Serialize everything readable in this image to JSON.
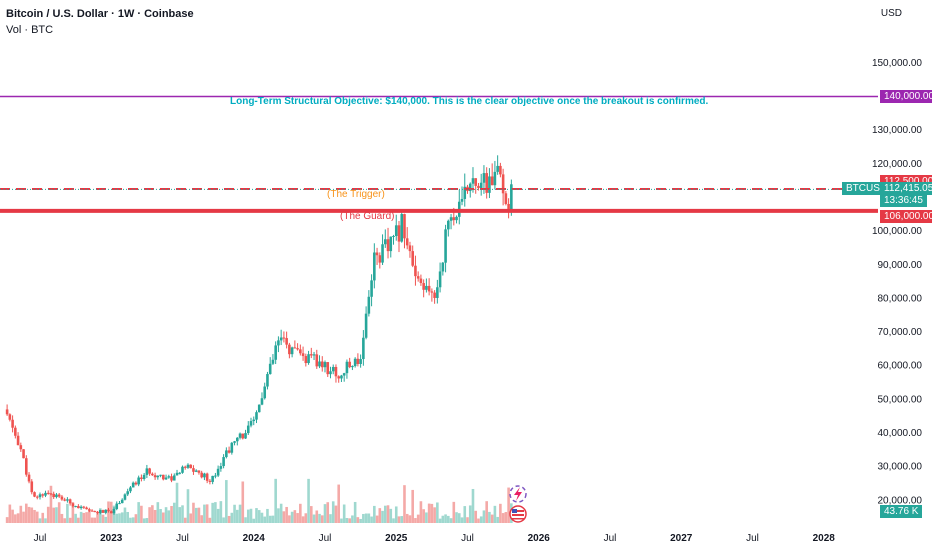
{
  "header": {
    "title": "Bitcoin / U.S. Dollar · 1W · Coinbase",
    "volume_label": "Vol · BTC",
    "currency": "USD"
  },
  "annotations": {
    "objective_text": "Long-Term Structural Objective: $140,000. This is the clear objective once the breakout is confirmed.",
    "trigger_text": "(The Trigger)",
    "guard_text": "(The Guard)"
  },
  "price_tags": {
    "objective": "140,000.00",
    "trigger": "112,500.00",
    "ticker": "BTCUSD",
    "last_price": "112,415.05",
    "countdown": "13:36:45",
    "guard": "106,000.00",
    "volume": "43.76 K"
  },
  "colors": {
    "up": "#26a69a",
    "down": "#ef5350",
    "objective_line": "#9c27b0",
    "level_line": "#e53945",
    "trigger_text": "#f7931a",
    "objective_text": "#00acc1"
  },
  "chart_data": {
    "type": "candlestick",
    "y_axis": {
      "min": 14000,
      "max": 160000,
      "ticks": [
        {
          "value": 150000,
          "label": "150,000.00"
        },
        {
          "value": 130000,
          "label": "130,000.00"
        },
        {
          "value": 120000,
          "label": "120,000.00"
        },
        {
          "value": 100000,
          "label": "100,000.00"
        },
        {
          "value": 90000,
          "label": "90,000.00"
        },
        {
          "value": 80000,
          "label": "80,000.00"
        },
        {
          "value": 70000,
          "label": "70,000.00"
        },
        {
          "value": 60000,
          "label": "60,000.00"
        },
        {
          "value": 50000,
          "label": "50,000.00"
        },
        {
          "value": 40000,
          "label": "40,000.00"
        },
        {
          "value": 30000,
          "label": "30,000.00"
        },
        {
          "value": 20000,
          "label": "20,000.00"
        }
      ]
    },
    "x_axis": {
      "ticks": [
        {
          "t": 2022.5,
          "label": "Jul",
          "bold": false
        },
        {
          "t": 2023.0,
          "label": "2023",
          "bold": true
        },
        {
          "t": 2023.5,
          "label": "Jul",
          "bold": false
        },
        {
          "t": 2024.0,
          "label": "2024",
          "bold": true
        },
        {
          "t": 2024.5,
          "label": "Jul",
          "bold": false
        },
        {
          "t": 2025.0,
          "label": "2025",
          "bold": true
        },
        {
          "t": 2025.5,
          "label": "Jul",
          "bold": false
        },
        {
          "t": 2026.0,
          "label": "2026",
          "bold": true
        },
        {
          "t": 2026.5,
          "label": "Jul",
          "bold": false
        },
        {
          "t": 2027.0,
          "label": "2027",
          "bold": true
        },
        {
          "t": 2027.5,
          "label": "Jul",
          "bold": false
        },
        {
          "t": 2028.0,
          "label": "2028",
          "bold": true
        }
      ]
    },
    "horizontal_levels": [
      {
        "name": "objective",
        "value": 140000
      },
      {
        "name": "trigger",
        "value": 112500
      },
      {
        "name": "guard",
        "value": 106000
      }
    ],
    "last_price": 112415.05,
    "anchors": [
      {
        "t": 2022.25,
        "p": 47000
      },
      {
        "t": 2022.36,
        "p": 36000
      },
      {
        "t": 2022.45,
        "p": 20500
      },
      {
        "t": 2022.55,
        "p": 22500
      },
      {
        "t": 2022.7,
        "p": 19500
      },
      {
        "t": 2022.85,
        "p": 16500
      },
      {
        "t": 2023.0,
        "p": 16700
      },
      {
        "t": 2023.12,
        "p": 23000
      },
      {
        "t": 2023.25,
        "p": 28500
      },
      {
        "t": 2023.42,
        "p": 26500
      },
      {
        "t": 2023.53,
        "p": 30000
      },
      {
        "t": 2023.7,
        "p": 26000
      },
      {
        "t": 2023.82,
        "p": 35000
      },
      {
        "t": 2024.0,
        "p": 43000
      },
      {
        "t": 2024.18,
        "p": 68000
      },
      {
        "t": 2024.3,
        "p": 63000
      },
      {
        "t": 2024.45,
        "p": 61000
      },
      {
        "t": 2024.6,
        "p": 57000
      },
      {
        "t": 2024.75,
        "p": 63000
      },
      {
        "t": 2024.84,
        "p": 92000
      },
      {
        "t": 2024.97,
        "p": 96000
      },
      {
        "t": 2025.05,
        "p": 103000
      },
      {
        "t": 2025.14,
        "p": 84000
      },
      {
        "t": 2025.27,
        "p": 80000
      },
      {
        "t": 2025.37,
        "p": 104000
      },
      {
        "t": 2025.45,
        "p": 106000
      },
      {
        "t": 2025.54,
        "p": 118000
      },
      {
        "t": 2025.62,
        "p": 113000
      },
      {
        "t": 2025.7,
        "p": 117000
      },
      {
        "t": 2025.78,
        "p": 108000
      },
      {
        "t": 2025.82,
        "p": 112415
      }
    ]
  }
}
